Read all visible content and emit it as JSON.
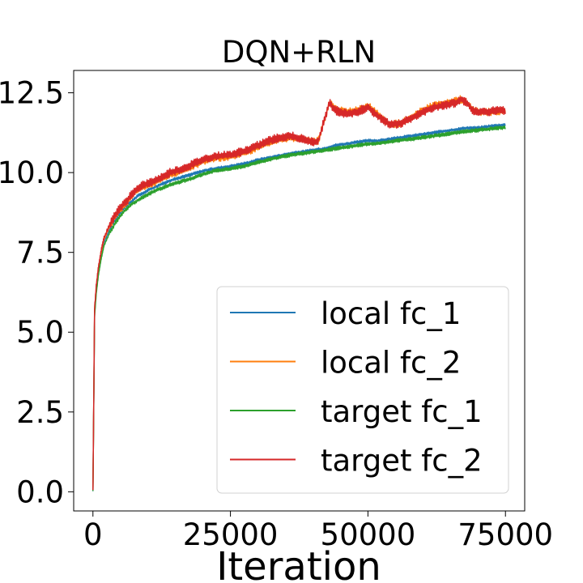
{
  "chart_data": {
    "type": "line",
    "title": "DQN+RLN",
    "xlabel": "Iteration",
    "ylabel": "",
    "xlim": [
      -3500,
      78500
    ],
    "ylim": [
      -0.6,
      13.2
    ],
    "xticks": [
      0,
      25000,
      50000,
      75000
    ],
    "xtick_labels": [
      "0",
      "25000",
      "50000",
      "75000"
    ],
    "yticks": [
      0.0,
      2.5,
      5.0,
      7.5,
      10.0,
      12.5
    ],
    "ytick_labels": [
      "0.0",
      "2.5",
      "5.0",
      "7.5",
      "10.0",
      "12.5"
    ],
    "grid": false,
    "legend_position": "lower-right",
    "series": [
      {
        "name": "local fc_1",
        "color": "#1f77b4",
        "noise": 0.05,
        "x": [
          0,
          300,
          600,
          1000,
          1500,
          2000,
          3000,
          4000,
          5000,
          6000,
          7000,
          8000,
          9000,
          10000,
          12000,
          14000,
          16000,
          18000,
          20000,
          22000,
          25000,
          28000,
          30000,
          33000,
          36000,
          38000,
          40000,
          42000,
          44000,
          46000,
          48000,
          50000,
          52000,
          54000,
          56000,
          58000,
          60000,
          62000,
          64000,
          66000,
          68000,
          70000,
          72000,
          75000
        ],
        "y": [
          0.0,
          5.6,
          6.3,
          6.9,
          7.4,
          7.8,
          8.2,
          8.5,
          8.75,
          8.95,
          9.1,
          9.25,
          9.35,
          9.45,
          9.6,
          9.75,
          9.85,
          9.95,
          10.05,
          10.12,
          10.2,
          10.3,
          10.4,
          10.5,
          10.6,
          10.65,
          10.7,
          10.75,
          10.85,
          10.9,
          10.95,
          11.0,
          11.0,
          11.05,
          11.1,
          11.15,
          11.2,
          11.25,
          11.3,
          11.35,
          11.4,
          11.4,
          11.45,
          11.5
        ]
      },
      {
        "name": "local fc_2",
        "color": "#ff7f0e",
        "noise": 0.12,
        "x": [
          0,
          300,
          600,
          1000,
          1500,
          2000,
          3000,
          4000,
          5000,
          6000,
          7000,
          8000,
          9000,
          10000,
          12000,
          14000,
          16000,
          18000,
          20000,
          22000,
          25000,
          28000,
          30000,
          32000,
          34000,
          36000,
          38000,
          40000,
          41000,
          42000,
          43000,
          44000,
          46000,
          48000,
          50000,
          52000,
          54000,
          56000,
          58000,
          60000,
          62000,
          64000,
          66000,
          67000,
          68000,
          69000,
          70000,
          72000,
          75000
        ],
        "y": [
          0.0,
          5.7,
          6.4,
          7.0,
          7.5,
          7.9,
          8.3,
          8.6,
          8.85,
          9.05,
          9.25,
          9.45,
          9.55,
          9.6,
          9.75,
          9.95,
          10.05,
          10.2,
          10.35,
          10.45,
          10.5,
          10.65,
          10.8,
          10.95,
          11.05,
          11.1,
          11.05,
          10.95,
          11.0,
          11.6,
          12.2,
          12.0,
          11.9,
          11.95,
          12.1,
          11.8,
          11.5,
          11.55,
          11.75,
          11.95,
          12.1,
          12.15,
          12.25,
          12.3,
          12.2,
          11.95,
          11.9,
          11.9,
          11.95
        ]
      },
      {
        "name": "target fc_1",
        "color": "#2ca02c",
        "noise": 0.06,
        "x": [
          0,
          300,
          600,
          1000,
          1500,
          2000,
          3000,
          4000,
          5000,
          6000,
          7000,
          8000,
          9000,
          10000,
          12000,
          14000,
          16000,
          18000,
          20000,
          22000,
          25000,
          28000,
          30000,
          33000,
          36000,
          38000,
          40000,
          42000,
          44000,
          46000,
          48000,
          50000,
          52000,
          54000,
          56000,
          58000,
          60000,
          62000,
          64000,
          66000,
          68000,
          70000,
          72000,
          75000
        ],
        "y": [
          0.0,
          5.5,
          6.2,
          6.8,
          7.3,
          7.7,
          8.1,
          8.4,
          8.65,
          8.85,
          9.0,
          9.12,
          9.22,
          9.32,
          9.48,
          9.62,
          9.72,
          9.82,
          9.95,
          10.05,
          10.12,
          10.22,
          10.32,
          10.45,
          10.55,
          10.6,
          10.65,
          10.7,
          10.75,
          10.8,
          10.85,
          10.9,
          10.92,
          10.97,
          11.02,
          11.05,
          11.1,
          11.15,
          11.2,
          11.25,
          11.3,
          11.33,
          11.37,
          11.42
        ]
      },
      {
        "name": "target fc_2",
        "color": "#d62728",
        "noise": 0.14,
        "x": [
          0,
          300,
          600,
          1000,
          1500,
          2000,
          3000,
          4000,
          5000,
          6000,
          7000,
          8000,
          9000,
          10000,
          12000,
          14000,
          16000,
          18000,
          20000,
          22000,
          25000,
          28000,
          30000,
          32000,
          34000,
          36000,
          38000,
          40000,
          41000,
          42000,
          43000,
          44000,
          46000,
          48000,
          50000,
          52000,
          54000,
          56000,
          58000,
          60000,
          62000,
          64000,
          66000,
          67000,
          68000,
          69000,
          70000,
          72000,
          75000
        ],
        "y": [
          0.0,
          5.75,
          6.45,
          7.05,
          7.55,
          7.95,
          8.35,
          8.65,
          8.9,
          9.1,
          9.3,
          9.5,
          9.6,
          9.65,
          9.8,
          10.0,
          10.1,
          10.25,
          10.4,
          10.5,
          10.55,
          10.7,
          10.85,
          11.0,
          11.1,
          11.15,
          11.05,
          10.95,
          11.0,
          11.6,
          12.2,
          11.95,
          11.85,
          11.9,
          12.05,
          11.75,
          11.5,
          11.55,
          11.7,
          11.9,
          12.05,
          12.1,
          12.2,
          12.3,
          12.2,
          11.95,
          11.9,
          11.92,
          11.95
        ]
      }
    ]
  }
}
